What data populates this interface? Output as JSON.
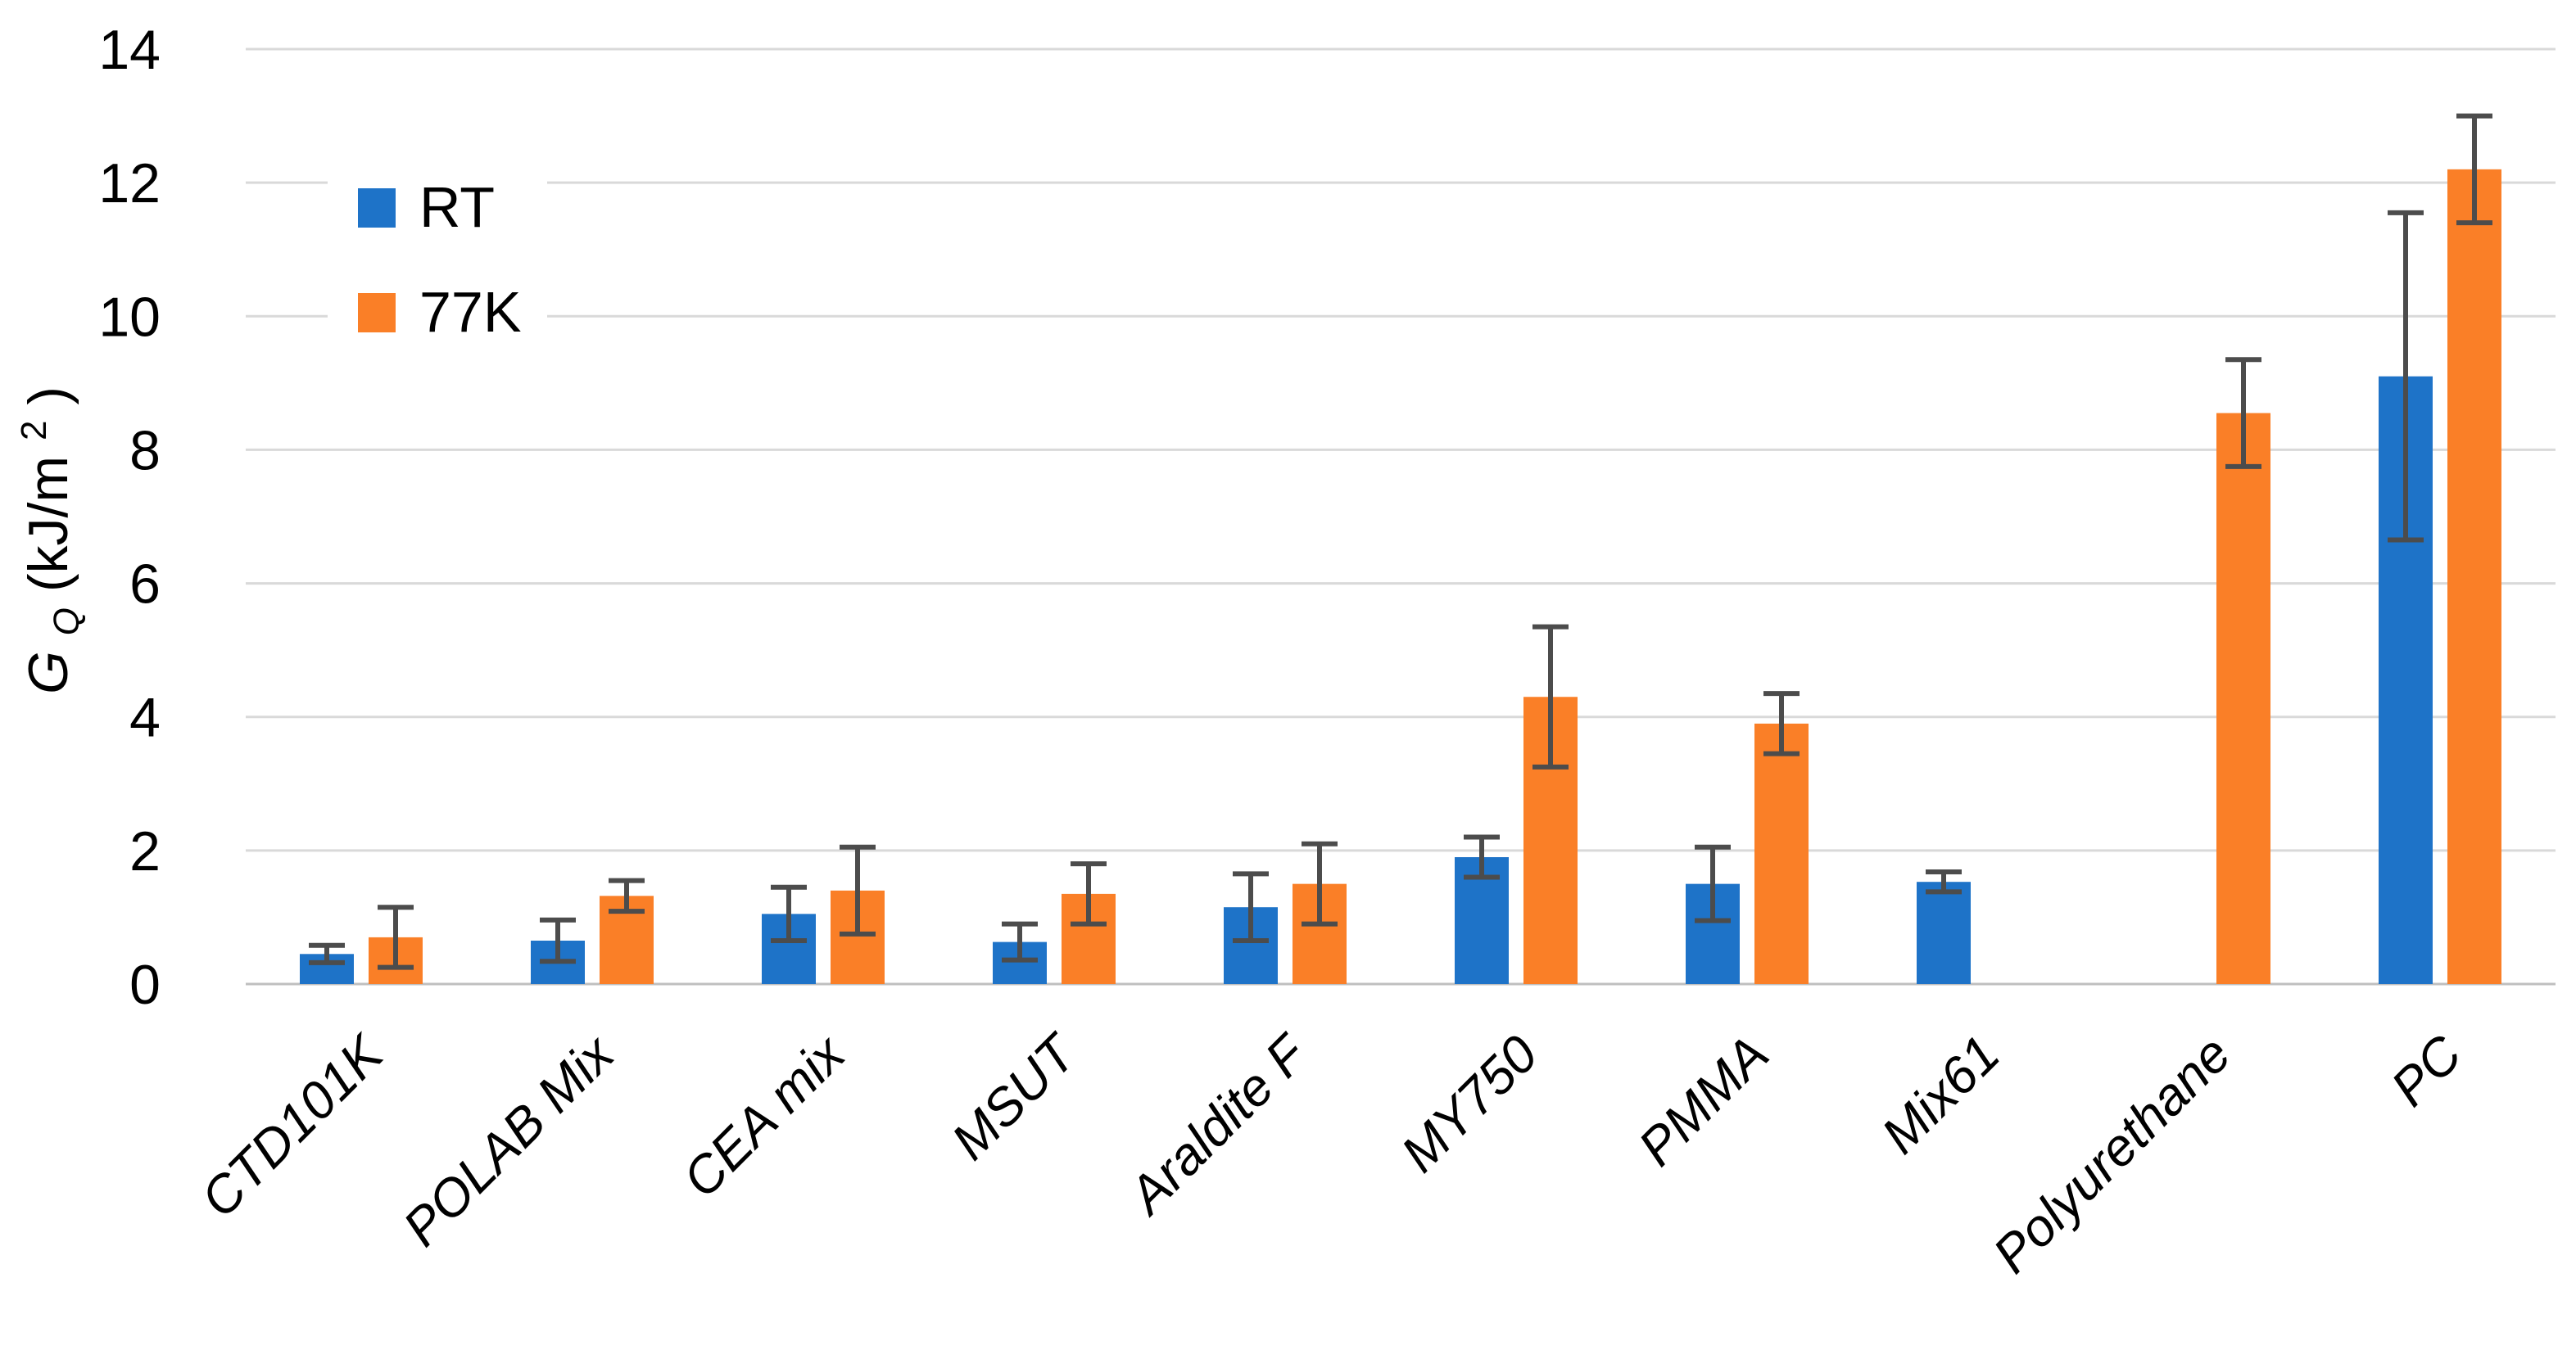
{
  "chart_data": {
    "type": "bar",
    "title": "",
    "ylabel": "G_Q (kJ/m²)",
    "ylabel_symbol": "G",
    "ylabel_subscript": "Q",
    "ylabel_units_prefix": " (kJ/m",
    "ylabel_superscript": "2",
    "ylabel_units_suffix": ")",
    "categories": [
      "CTD101K",
      "POLAB Mix",
      "CEA mix",
      "MSUT",
      "Araldite F",
      "MY750",
      "PMMA",
      "Mix61",
      "Polyurethane",
      "PC"
    ],
    "series": [
      {
        "name": "RT",
        "color": "#1E73C8",
        "values": [
          0.45,
          0.65,
          1.05,
          0.63,
          1.15,
          1.9,
          1.5,
          1.53,
          null,
          9.1
        ],
        "errors": [
          0.13,
          0.31,
          0.4,
          0.27,
          0.5,
          0.3,
          0.55,
          0.15,
          null,
          2.45
        ]
      },
      {
        "name": "77K",
        "color": "#FA7F27",
        "values": [
          0.7,
          1.32,
          1.4,
          1.35,
          1.5,
          4.3,
          3.9,
          null,
          8.55,
          12.2
        ],
        "errors": [
          0.45,
          0.23,
          0.65,
          0.45,
          0.6,
          1.05,
          0.45,
          null,
          0.8,
          0.8
        ]
      }
    ],
    "yticks": [
      "0",
      "2",
      "4",
      "6",
      "8",
      "10",
      "12",
      "14"
    ],
    "ylim": [
      0,
      14
    ],
    "grid": "horizontal",
    "legend_position": "upper-left-inside",
    "colors": {
      "gridline": "#D9D9D9",
      "axis_line": "#BFBFBF",
      "error_bar": "#4C4C4C",
      "background": "#FFFFFF",
      "text": "#000000"
    }
  }
}
